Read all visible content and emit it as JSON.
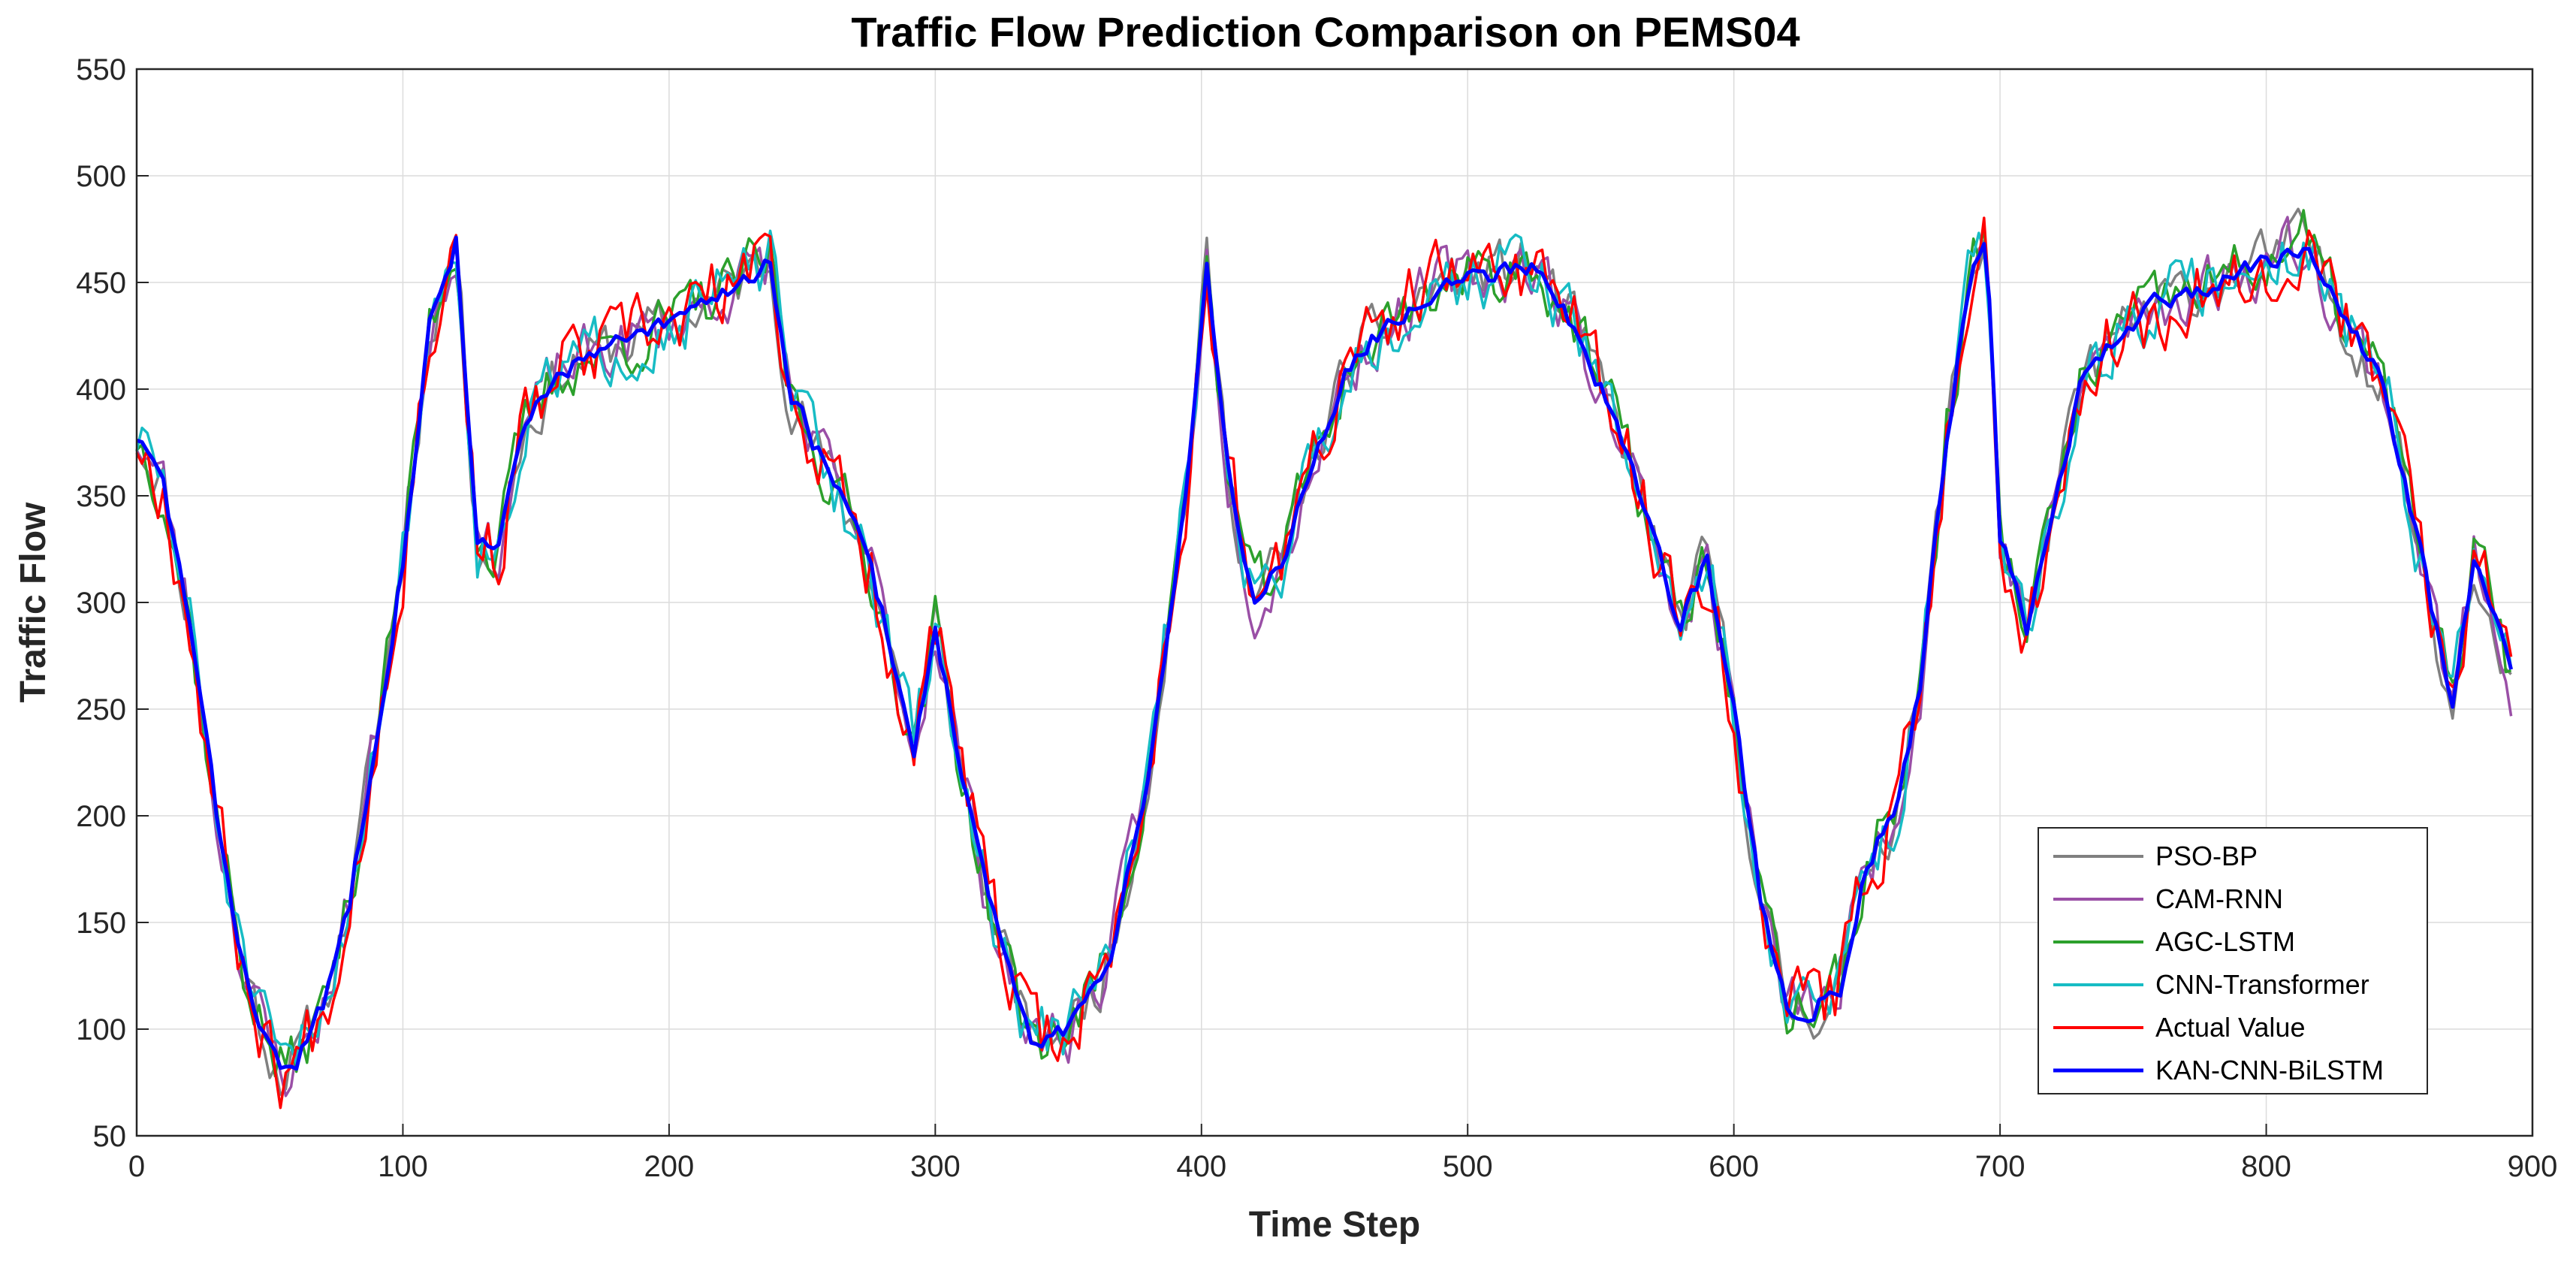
{
  "chart_data": {
    "type": "line",
    "title": "Traffic Flow Prediction Comparison on PEMS04",
    "xlabel": "Time Step",
    "ylabel": "Traffic Flow",
    "xlim": [
      0,
      900
    ],
    "ylim": [
      50,
      550
    ],
    "xticks": [
      0,
      100,
      200,
      300,
      400,
      500,
      600,
      700,
      800,
      900
    ],
    "yticks": [
      50,
      100,
      150,
      200,
      250,
      300,
      350,
      400,
      450,
      500,
      550
    ],
    "grid": true,
    "legend_position": "bottom-right",
    "base_profile": {
      "x": [
        0,
        10,
        20,
        30,
        40,
        50,
        55,
        60,
        70,
        80,
        90,
        100,
        110,
        115,
        120,
        128,
        135,
        145,
        160,
        180,
        200,
        220,
        238,
        245,
        260,
        275,
        285,
        292,
        300,
        310,
        320,
        335,
        350,
        365,
        380,
        395,
        402,
        410,
        420,
        430,
        440,
        455,
        470,
        490,
        510,
        525,
        540,
        560,
        580,
        590,
        600,
        610,
        620,
        630,
        640,
        650,
        660,
        670,
        680,
        690,
        695,
        700,
        710,
        720,
        730,
        740,
        760,
        780,
        800,
        815,
        830,
        845,
        860,
        870,
        878,
        885,
        892
      ],
      "y": [
        378,
        355,
        290,
        200,
        130,
        90,
        80,
        85,
        110,
        160,
        240,
        320,
        430,
        450,
        470,
        330,
        320,
        380,
        410,
        420,
        430,
        445,
        460,
        400,
        360,
        320,
        270,
        230,
        290,
        220,
        160,
        95,
        100,
        130,
        220,
        360,
        460,
        360,
        300,
        320,
        360,
        410,
        430,
        450,
        455,
        460,
        430,
        370,
        290,
        320,
        250,
        160,
        110,
        110,
        120,
        180,
        200,
        260,
        380,
        460,
        470,
        330,
        290,
        340,
        400,
        420,
        440,
        450,
        460,
        470,
        430,
        400,
        310,
        250,
        320,
        300,
        265
      ]
    },
    "series": [
      {
        "name": "PSO-BP",
        "color": "#808080",
        "noise": 22,
        "seed": 11
      },
      {
        "name": "CAM-RNN",
        "color": "#9a4fa6",
        "noise": 24,
        "seed": 23
      },
      {
        "name": "AGC-LSTM",
        "color": "#2ca02c",
        "noise": 24,
        "seed": 37
      },
      {
        "name": "CNN-Transformer",
        "color": "#17bcc4",
        "noise": 26,
        "seed": 51
      },
      {
        "name": "Actual Value",
        "color": "#ff0000",
        "noise": 30,
        "seed": 67
      },
      {
        "name": "KAN-CNN-BiLSTM",
        "color": "#0000ff",
        "noise": 8,
        "seed": 83
      }
    ]
  }
}
